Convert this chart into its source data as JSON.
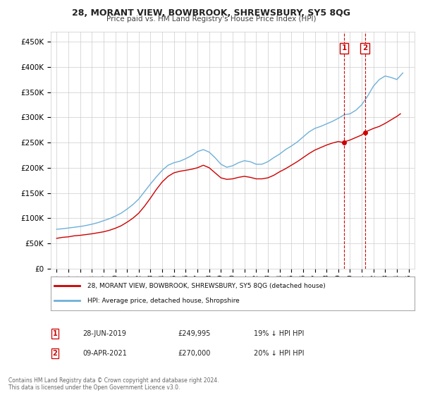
{
  "title": "28, MORANT VIEW, BOWBROOK, SHREWSBURY, SY5 8QG",
  "subtitle": "Price paid vs. HM Land Registry's House Price Index (HPI)",
  "ylabel_ticks": [
    "£0",
    "£50K",
    "£100K",
    "£150K",
    "£200K",
    "£250K",
    "£300K",
    "£350K",
    "£400K",
    "£450K"
  ],
  "ytick_values": [
    0,
    50000,
    100000,
    150000,
    200000,
    250000,
    300000,
    350000,
    400000,
    450000
  ],
  "ylim": [
    0,
    470000
  ],
  "xlim": [
    1994.5,
    2025.5
  ],
  "hpi_color": "#6eb0d8",
  "price_color": "#cc0000",
  "transaction1": {
    "date": "28-JUN-2019",
    "price": 249995,
    "label": "1",
    "year": 2019.49
  },
  "transaction2": {
    "date": "09-APR-2021",
    "price": 270000,
    "label": "2",
    "year": 2021.27
  },
  "legend_line1": "28, MORANT VIEW, BOWBROOK, SHREWSBURY, SY5 8QG (detached house)",
  "legend_line2": "HPI: Average price, detached house, Shropshire",
  "table_row1": [
    "1",
    "28-JUN-2019",
    "£249,995",
    "19%",
    "↓ HPI"
  ],
  "table_row2": [
    "2",
    "09-APR-2021",
    "£270,000",
    "20%",
    "↓ HPI"
  ],
  "footer": "Contains HM Land Registry data © Crown copyright and database right 2024.\nThis data is licensed under the Open Government Licence v3.0.",
  "background_color": "#ffffff",
  "grid_color": "#cccccc",
  "hpi_years": [
    1995,
    1995.5,
    1996,
    1996.5,
    1997,
    1997.5,
    1998,
    1998.5,
    1999,
    1999.5,
    2000,
    2000.5,
    2001,
    2001.5,
    2002,
    2002.5,
    2003,
    2003.5,
    2004,
    2004.5,
    2005,
    2005.5,
    2006,
    2006.5,
    2007,
    2007.5,
    2008,
    2008.5,
    2009,
    2009.5,
    2010,
    2010.5,
    2011,
    2011.5,
    2012,
    2012.5,
    2013,
    2013.5,
    2014,
    2014.5,
    2015,
    2015.5,
    2016,
    2016.5,
    2017,
    2017.5,
    2018,
    2018.5,
    2019,
    2019.5,
    2020,
    2020.5,
    2021,
    2021.5,
    2022,
    2022.5,
    2023,
    2023.5,
    2024,
    2024.5
  ],
  "hpi_values": [
    78000,
    79000,
    80500,
    82000,
    83500,
    85500,
    88000,
    91000,
    95000,
    99000,
    104000,
    110000,
    118000,
    127000,
    138000,
    153000,
    168000,
    182000,
    195000,
    205000,
    210000,
    213000,
    218000,
    224000,
    232000,
    236000,
    231000,
    220000,
    207000,
    201000,
    204000,
    210000,
    214000,
    212000,
    207000,
    207000,
    212000,
    220000,
    227000,
    236000,
    243000,
    251000,
    261000,
    271000,
    278000,
    282000,
    287000,
    292000,
    298000,
    305000,
    307000,
    314000,
    325000,
    342000,
    362000,
    375000,
    382000,
    379000,
    375000,
    388000
  ],
  "price_years": [
    1995,
    1995.5,
    1996,
    1996.5,
    1997,
    1997.5,
    1998,
    1998.5,
    1999,
    1999.5,
    2000,
    2000.5,
    2001,
    2001.5,
    2002,
    2002.5,
    2003,
    2003.5,
    2004,
    2004.5,
    2005,
    2005.5,
    2006,
    2006.5,
    2007,
    2007.5,
    2008,
    2008.5,
    2009,
    2009.5,
    2010,
    2010.5,
    2011,
    2011.5,
    2012,
    2012.5,
    2013,
    2013.5,
    2014,
    2014.5,
    2015,
    2015.5,
    2016,
    2016.5,
    2017,
    2017.5,
    2018,
    2018.5,
    2019,
    2019.49,
    2019.6,
    2020,
    2020.5,
    2021,
    2021.27,
    2021.5,
    2022,
    2022.5,
    2023,
    2023.5,
    2024,
    2024.3
  ],
  "price_values": [
    60000,
    62000,
    63000,
    65000,
    66000,
    67500,
    69000,
    71000,
    73000,
    76000,
    80000,
    85000,
    92000,
    100000,
    110000,
    124000,
    140000,
    157000,
    172000,
    183000,
    190000,
    193000,
    195000,
    197000,
    200000,
    205000,
    200000,
    190000,
    180000,
    177000,
    178000,
    181000,
    183000,
    181000,
    178000,
    178000,
    180000,
    185000,
    192000,
    198000,
    205000,
    212000,
    220000,
    228000,
    235000,
    240000,
    245000,
    249000,
    252000,
    249995,
    252000,
    255000,
    260000,
    265000,
    270000,
    273000,
    278000,
    282000,
    288000,
    295000,
    302000,
    307000
  ]
}
